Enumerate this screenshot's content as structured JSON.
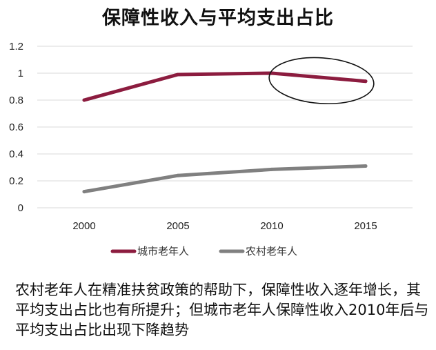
{
  "chart_data": {
    "type": "line",
    "title": "保障性收入与平均支出占比",
    "categories": [
      "2000",
      "2005",
      "2010",
      "2015"
    ],
    "series": [
      {
        "name": "城市老年人",
        "values": [
          0.8,
          0.99,
          1.0,
          0.94
        ],
        "color": "#8c1c3f"
      },
      {
        "name": "农村老年人",
        "values": [
          0.12,
          0.24,
          0.285,
          0.31
        ],
        "color": "#808080"
      }
    ],
    "yticks": [
      "0",
      "0.2",
      "0.4",
      "0.6",
      "0.8",
      "1",
      "1.2"
    ],
    "ylim": [
      0,
      1.2
    ],
    "grid": true,
    "legend": "bottom",
    "annotation": {
      "type": "ellipse",
      "around": [
        "2010",
        "2015"
      ],
      "series": "城市老年人"
    }
  },
  "caption": "农村老年人在精准扶贫政策的帮助下，保障性收入逐年增长，其平均支出占比也有所提升；但城市老年人保障性收入2010年后与平均支出占比出现下降趋势"
}
